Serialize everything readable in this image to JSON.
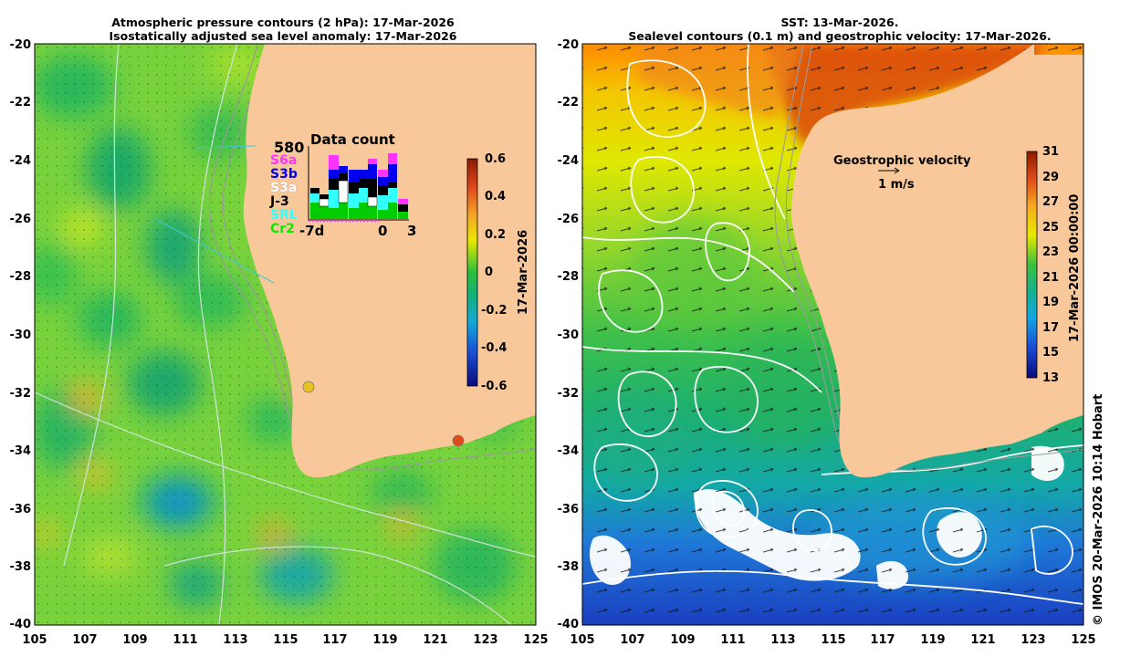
{
  "left_panel": {
    "title_line1": "Atmospheric pressure contours (2 hPa): 17-Mar-2026",
    "title_line2": "Isostatically adjusted sea level anomaly: 17-Mar-2026",
    "colorbar": {
      "ticks": [
        "0.6",
        "0.4",
        "0.2",
        "0",
        "-0.2",
        "-0.4",
        "-0.6"
      ],
      "label": "17-Mar-2026",
      "min": -0.6,
      "max": 0.6
    },
    "data_count": {
      "title": "Data count",
      "max_label": "580",
      "satellites": [
        {
          "name": "S6a",
          "color": "#ff33ff"
        },
        {
          "name": "S3b",
          "color": "#0000ee"
        },
        {
          "name": "S3a",
          "color": "#ffffff"
        },
        {
          "name": "J-3",
          "color": "#000000"
        },
        {
          "name": "SRL",
          "color": "#33ffff"
        },
        {
          "name": "Cr2",
          "color": "#00ee00"
        }
      ],
      "axis_labels": [
        "-7d",
        "0",
        "3"
      ]
    }
  },
  "right_panel": {
    "title_line1": "SST: 13-Mar-2026.",
    "title_line2": "Sealevel contours (0.1 m) and geostrophic velocity: 17-Mar-2026.",
    "colorbar": {
      "ticks": [
        "31",
        "29",
        "27",
        "25",
        "23",
        "21",
        "19",
        "17",
        "15",
        "13"
      ],
      "label": "17-Mar-2026 00:00:00",
      "min": 13,
      "max": 31
    },
    "legend_title": "Geostrophic velocity",
    "legend_scale": "1 m/s"
  },
  "axes": {
    "y_ticks": [
      "-20",
      "-22",
      "-24",
      "-26",
      "-28",
      "-30",
      "-32",
      "-34",
      "-36",
      "-38",
      "-40"
    ],
    "x_ticks": [
      "105",
      "107",
      "109",
      "111",
      "113",
      "115",
      "117",
      "119",
      "121",
      "123",
      "125"
    ]
  },
  "credit": "© IMOS 20-Mar-2026 10:14 Hobart",
  "colors": {
    "land": "#f9c89a",
    "sla_neutral": "#7ad63c",
    "sst_warm": "#cc2200",
    "sst_cool": "#1a4fd6"
  }
}
